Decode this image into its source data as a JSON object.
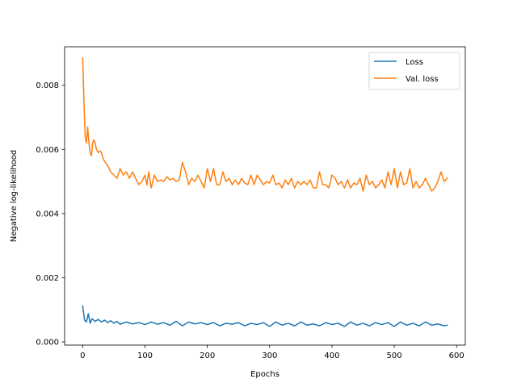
{
  "chart_data": {
    "type": "line",
    "xlabel": "Epochs",
    "ylabel": "Negative log-likelihood",
    "xlim": [
      -29,
      614
    ],
    "ylim": [
      -0.0001,
      0.0092
    ],
    "xticks": [
      0,
      100,
      200,
      300,
      400,
      500,
      600
    ],
    "xtick_labels": [
      "0",
      "100",
      "200",
      "300",
      "400",
      "500",
      "600"
    ],
    "yticks": [
      0.0,
      0.002,
      0.004,
      0.006,
      0.008
    ],
    "ytick_labels": [
      "0.000",
      "0.002",
      "0.004",
      "0.006",
      "0.008"
    ],
    "grid": false,
    "legend_position": "top-right",
    "series": [
      {
        "name": "Loss",
        "color": "#1f77b4",
        "x": [
          0,
          3,
          6,
          9,
          12,
          15,
          20,
          25,
          30,
          35,
          40,
          45,
          50,
          55,
          60,
          70,
          80,
          90,
          100,
          110,
          120,
          130,
          140,
          150,
          160,
          170,
          180,
          190,
          200,
          210,
          220,
          230,
          240,
          250,
          260,
          270,
          280,
          290,
          300,
          310,
          320,
          330,
          340,
          350,
          360,
          370,
          380,
          390,
          400,
          410,
          420,
          430,
          440,
          450,
          460,
          470,
          480,
          490,
          500,
          510,
          520,
          530,
          540,
          550,
          560,
          570,
          580,
          585
        ],
        "y": [
          0.00112,
          0.00068,
          0.00062,
          0.00088,
          0.00058,
          0.00072,
          0.00064,
          0.0007,
          0.00062,
          0.00068,
          0.0006,
          0.00066,
          0.00058,
          0.00064,
          0.00055,
          0.00062,
          0.00056,
          0.0006,
          0.00054,
          0.00062,
          0.00055,
          0.0006,
          0.00052,
          0.00064,
          0.0005,
          0.00062,
          0.00056,
          0.0006,
          0.00054,
          0.0006,
          0.0005,
          0.00058,
          0.00055,
          0.0006,
          0.0005,
          0.00058,
          0.00054,
          0.0006,
          0.00048,
          0.00062,
          0.00052,
          0.00058,
          0.0005,
          0.00062,
          0.00052,
          0.00056,
          0.0005,
          0.0006,
          0.00054,
          0.00058,
          0.00048,
          0.00062,
          0.00052,
          0.00058,
          0.0005,
          0.0006,
          0.00054,
          0.0006,
          0.00048,
          0.00062,
          0.00052,
          0.00058,
          0.0005,
          0.00062,
          0.00052,
          0.00056,
          0.0005,
          0.00052
        ]
      },
      {
        "name": "Val. loss",
        "color": "#ff7f0e",
        "x": [
          0,
          2,
          4,
          6,
          8,
          10,
          12,
          14,
          16,
          18,
          20,
          22,
          25,
          28,
          30,
          33,
          36,
          40,
          45,
          50,
          55,
          60,
          65,
          70,
          75,
          80,
          85,
          90,
          95,
          100,
          103,
          106,
          110,
          115,
          120,
          125,
          130,
          135,
          140,
          145,
          150,
          155,
          160,
          165,
          170,
          175,
          180,
          185,
          190,
          195,
          200,
          205,
          210,
          215,
          220,
          225,
          230,
          235,
          240,
          245,
          250,
          255,
          260,
          265,
          270,
          275,
          280,
          285,
          290,
          295,
          300,
          305,
          310,
          315,
          320,
          325,
          330,
          335,
          340,
          345,
          350,
          355,
          360,
          365,
          370,
          375,
          380,
          385,
          390,
          395,
          400,
          405,
          410,
          415,
          420,
          425,
          430,
          435,
          440,
          445,
          450,
          455,
          460,
          465,
          470,
          475,
          480,
          485,
          490,
          495,
          500,
          505,
          510,
          515,
          520,
          525,
          530,
          535,
          540,
          545,
          550,
          555,
          560,
          565,
          570,
          575,
          580,
          585
        ],
        "y": [
          0.00885,
          0.0075,
          0.0064,
          0.0062,
          0.0067,
          0.0062,
          0.0059,
          0.0058,
          0.0062,
          0.0063,
          0.0062,
          0.006,
          0.0059,
          0.00595,
          0.0059,
          0.0057,
          0.0056,
          0.0055,
          0.0053,
          0.0052,
          0.0051,
          0.0054,
          0.0052,
          0.0053,
          0.0051,
          0.0053,
          0.0051,
          0.0049,
          0.005,
          0.0052,
          0.0049,
          0.0053,
          0.0048,
          0.0052,
          0.005,
          0.00505,
          0.005,
          0.00515,
          0.00505,
          0.0051,
          0.005,
          0.00505,
          0.0056,
          0.0053,
          0.0049,
          0.0051,
          0.005,
          0.0052,
          0.005,
          0.0048,
          0.0054,
          0.005,
          0.0054,
          0.0049,
          0.0049,
          0.0053,
          0.005,
          0.0051,
          0.0049,
          0.00505,
          0.0049,
          0.0051,
          0.00495,
          0.0049,
          0.0052,
          0.0049,
          0.0052,
          0.00505,
          0.0049,
          0.005,
          0.00495,
          0.0052,
          0.0049,
          0.00495,
          0.0048,
          0.00505,
          0.0049,
          0.0051,
          0.0048,
          0.005,
          0.0049,
          0.005,
          0.0049,
          0.00505,
          0.0048,
          0.0048,
          0.0053,
          0.0049,
          0.0049,
          0.0048,
          0.0052,
          0.0051,
          0.0049,
          0.005,
          0.0048,
          0.00505,
          0.0048,
          0.00495,
          0.0049,
          0.0051,
          0.0047,
          0.0052,
          0.0049,
          0.005,
          0.0048,
          0.0049,
          0.00505,
          0.0048,
          0.0053,
          0.0049,
          0.0054,
          0.0048,
          0.0053,
          0.0049,
          0.00495,
          0.0054,
          0.0048,
          0.005,
          0.0048,
          0.0049,
          0.0051,
          0.0049,
          0.0047,
          0.0048,
          0.005,
          0.0053,
          0.005,
          0.0051
        ]
      }
    ]
  }
}
